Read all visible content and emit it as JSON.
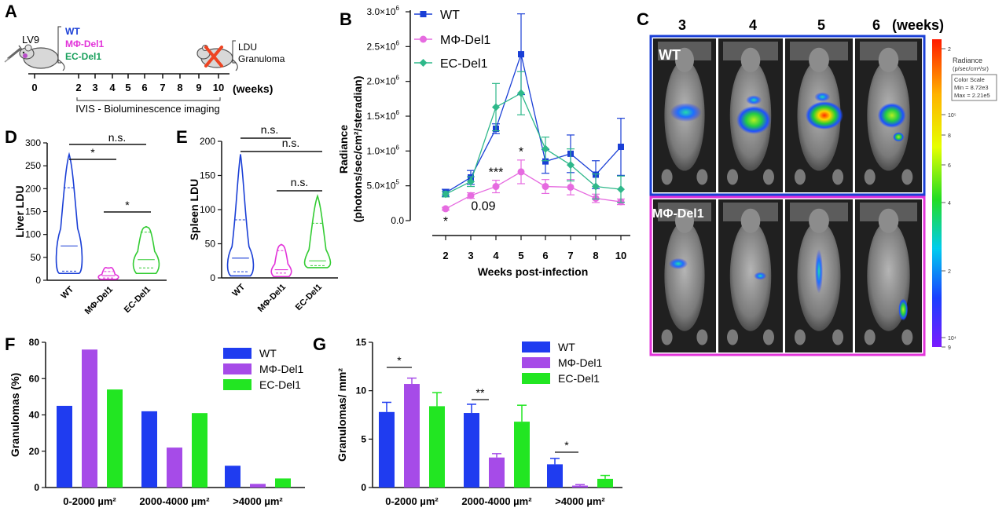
{
  "colors": {
    "wt": "#1a3fd6",
    "mphi": "#e66be0",
    "ec": "#2eb88a",
    "bar_wt": "#1f3cf0",
    "bar_mphi": "#a64be8",
    "bar_ec": "#22e622",
    "wt_text": "#1a3fd6",
    "mphi_text": "#e233d9",
    "ec_text": "#19a05c",
    "violin_wt": "#1a3fd6",
    "violin_mphi": "#e233d9",
    "violin_ec": "#33cc33",
    "frame_wt": "#1a3fd6",
    "frame_mphi": "#e233d9"
  },
  "panelA": {
    "label": "A",
    "virus": "LV9",
    "groups": [
      "WT",
      "MΦ-Del1",
      "EC-Del1"
    ],
    "end_labels": [
      "LDU",
      "Granuloma"
    ],
    "ticks": [
      "0",
      "2",
      "3",
      "4",
      "5",
      "6",
      "7",
      "8",
      "9",
      "10"
    ],
    "unit": "(weeks)",
    "imaging": "IVIS - Bioluminescence imaging",
    "mouse_icon": "mouse-icon",
    "syringe_icon": "syringe-icon",
    "cross_icon": "cross-icon"
  },
  "panelB": {
    "label": "B"
  },
  "panelC": {
    "label": "C",
    "weeks": [
      "3",
      "4",
      "5",
      "6"
    ],
    "unit": "(weeks)",
    "row_labels": [
      "WT",
      "MΦ-Del1"
    ],
    "scale_title": "Radiance",
    "scale_unit": "(p/sec/cm²/sr)",
    "scale_box": [
      "Color Scale",
      "Min = 8.72e3",
      "Max = 2.21e5"
    ],
    "scale_ticks": [
      "2",
      "10⁵",
      "8",
      "6",
      "4",
      "2",
      "10⁴",
      "9"
    ]
  },
  "panelD": {
    "label": "D",
    "sig": [
      {
        "text": "n.s.",
        "from": 0,
        "to": 2
      },
      {
        "text": "*",
        "from": 0,
        "to": 1
      },
      {
        "text": "*",
        "from": 1,
        "to": 2
      }
    ]
  },
  "panelE": {
    "label": "E",
    "sig": [
      {
        "text": "n.s.",
        "from": 0,
        "to": 1
      },
      {
        "text": "n.s.",
        "from": 0,
        "to": 2
      },
      {
        "text": "n.s.",
        "from": 1,
        "to": 2
      }
    ]
  },
  "panelF": {
    "label": "F"
  },
  "panelG": {
    "label": "G",
    "sig": [
      {
        "text": "*",
        "group": 0
      },
      {
        "text": "**",
        "group": 1
      },
      {
        "text": "*",
        "group": 2
      }
    ]
  },
  "chart_data": [
    {
      "id": "B",
      "type": "line",
      "x": [
        2,
        3,
        4,
        5,
        6,
        7,
        8,
        10
      ],
      "x_ticks": [
        "2",
        "3",
        "4",
        "5",
        "6",
        "7",
        "8",
        "10"
      ],
      "xlabel": "Weeks post-infection",
      "ylabel_lines": [
        "Radiance",
        "(photons/sec/cm²/steradian)"
      ],
      "ylim": [
        0,
        3000000
      ],
      "y_ticks": [
        {
          "v": 0,
          "t": "0.0"
        },
        {
          "v": 500000,
          "m": "5.0×10",
          "e": "5"
        },
        {
          "v": 1000000,
          "m": "1.0×10",
          "e": "6"
        },
        {
          "v": 1500000,
          "m": "1.5×10",
          "e": "6"
        },
        {
          "v": 2000000,
          "m": "2.0×10",
          "e": "6"
        },
        {
          "v": 2500000,
          "m": "2.5×10",
          "e": "6"
        },
        {
          "v": 3000000,
          "m": "3.0×10",
          "e": "6"
        }
      ],
      "series": [
        {
          "name": "WT",
          "marker": "square",
          "values": [
            400000,
            620000,
            1320000,
            2390000,
            850000,
            960000,
            660000,
            1060000
          ],
          "errors": [
            50000,
            100000,
            70000,
            580000,
            170000,
            270000,
            200000,
            410000
          ]
        },
        {
          "name": "MΦ-Del1",
          "marker": "circle",
          "values": [
            170000,
            360000,
            490000,
            700000,
            490000,
            480000,
            320000,
            270000
          ],
          "errors": [
            20000,
            40000,
            90000,
            170000,
            100000,
            110000,
            60000,
            40000
          ]
        },
        {
          "name": "EC-Del1",
          "marker": "diamond",
          "values": [
            380000,
            560000,
            1630000,
            1830000,
            1030000,
            800000,
            490000,
            450000
          ],
          "errors": [
            40000,
            70000,
            340000,
            310000,
            170000,
            230000,
            180000,
            190000
          ]
        }
      ],
      "annotations": [
        {
          "text": "*",
          "x": 2,
          "y": 0
        },
        {
          "text": "0.09",
          "x": 3,
          "y": 150000
        },
        {
          "text": "***",
          "x": 4,
          "y": 640000
        },
        {
          "text": "*",
          "x": 5,
          "y": 930000
        }
      ]
    },
    {
      "id": "D",
      "type": "violin",
      "categories": [
        "WT",
        "MΦ-Del1",
        "EC-Del1"
      ],
      "ylabel": "Liver  LDU",
      "ylim": [
        0,
        300
      ],
      "y_ticks": [
        0,
        50,
        100,
        150,
        200,
        250,
        300
      ],
      "violins": [
        {
          "min": 15,
          "max": 275,
          "median": 75,
          "q1": 20,
          "q3": 202
        },
        {
          "min": 2,
          "max": 27,
          "median": 10,
          "q1": 5,
          "q3": 19
        },
        {
          "min": 15,
          "max": 117,
          "median": 45,
          "q1": 27,
          "q3": 105
        }
      ]
    },
    {
      "id": "E",
      "type": "violin",
      "categories": [
        "WT",
        "MΦ-Del1",
        "EC-Del1"
      ],
      "ylabel": "Spleen  LDU",
      "ylim": [
        0,
        200
      ],
      "y_ticks": [
        0,
        50,
        100,
        150,
        200
      ],
      "violins": [
        {
          "min": 3,
          "max": 181,
          "median": 29,
          "q1": 9,
          "q3": 85
        },
        {
          "min": 2,
          "max": 49,
          "median": 12,
          "q1": 7,
          "q3": 40
        },
        {
          "min": 15,
          "max": 120,
          "median": 25,
          "q1": 18,
          "q3": 80
        }
      ]
    },
    {
      "id": "F",
      "type": "bar",
      "categories": [
        "0-2000 µm²",
        "2000-4000 µm²",
        ">4000 µm²"
      ],
      "ylabel": "Granulomas (%)",
      "ylim": [
        0,
        80
      ],
      "y_ticks": [
        0,
        20,
        40,
        60,
        80
      ],
      "series": [
        {
          "name": "WT",
          "values": [
            45,
            42,
            12
          ]
        },
        {
          "name": "MΦ-Del1",
          "values": [
            76,
            22,
            2
          ]
        },
        {
          "name": "EC-Del1",
          "values": [
            54,
            41,
            5
          ]
        }
      ]
    },
    {
      "id": "G",
      "type": "bar",
      "categories": [
        "0-2000 µm²",
        "2000-4000 µm²",
        ">4000 µm²"
      ],
      "ylabel": "Granulomas/ mm²",
      "ylim": [
        0,
        15
      ],
      "y_ticks": [
        0,
        5,
        10,
        15
      ],
      "series": [
        {
          "name": "WT",
          "values": [
            7.8,
            7.7,
            2.4
          ],
          "errors": [
            1.0,
            0.9,
            0.6
          ]
        },
        {
          "name": "MΦ-Del1",
          "values": [
            10.7,
            3.1,
            0.2
          ],
          "errors": [
            0.6,
            0.4,
            0.1
          ]
        },
        {
          "name": "EC-Del1",
          "values": [
            8.4,
            6.8,
            0.9
          ],
          "errors": [
            1.4,
            1.7,
            0.35
          ]
        }
      ]
    }
  ]
}
